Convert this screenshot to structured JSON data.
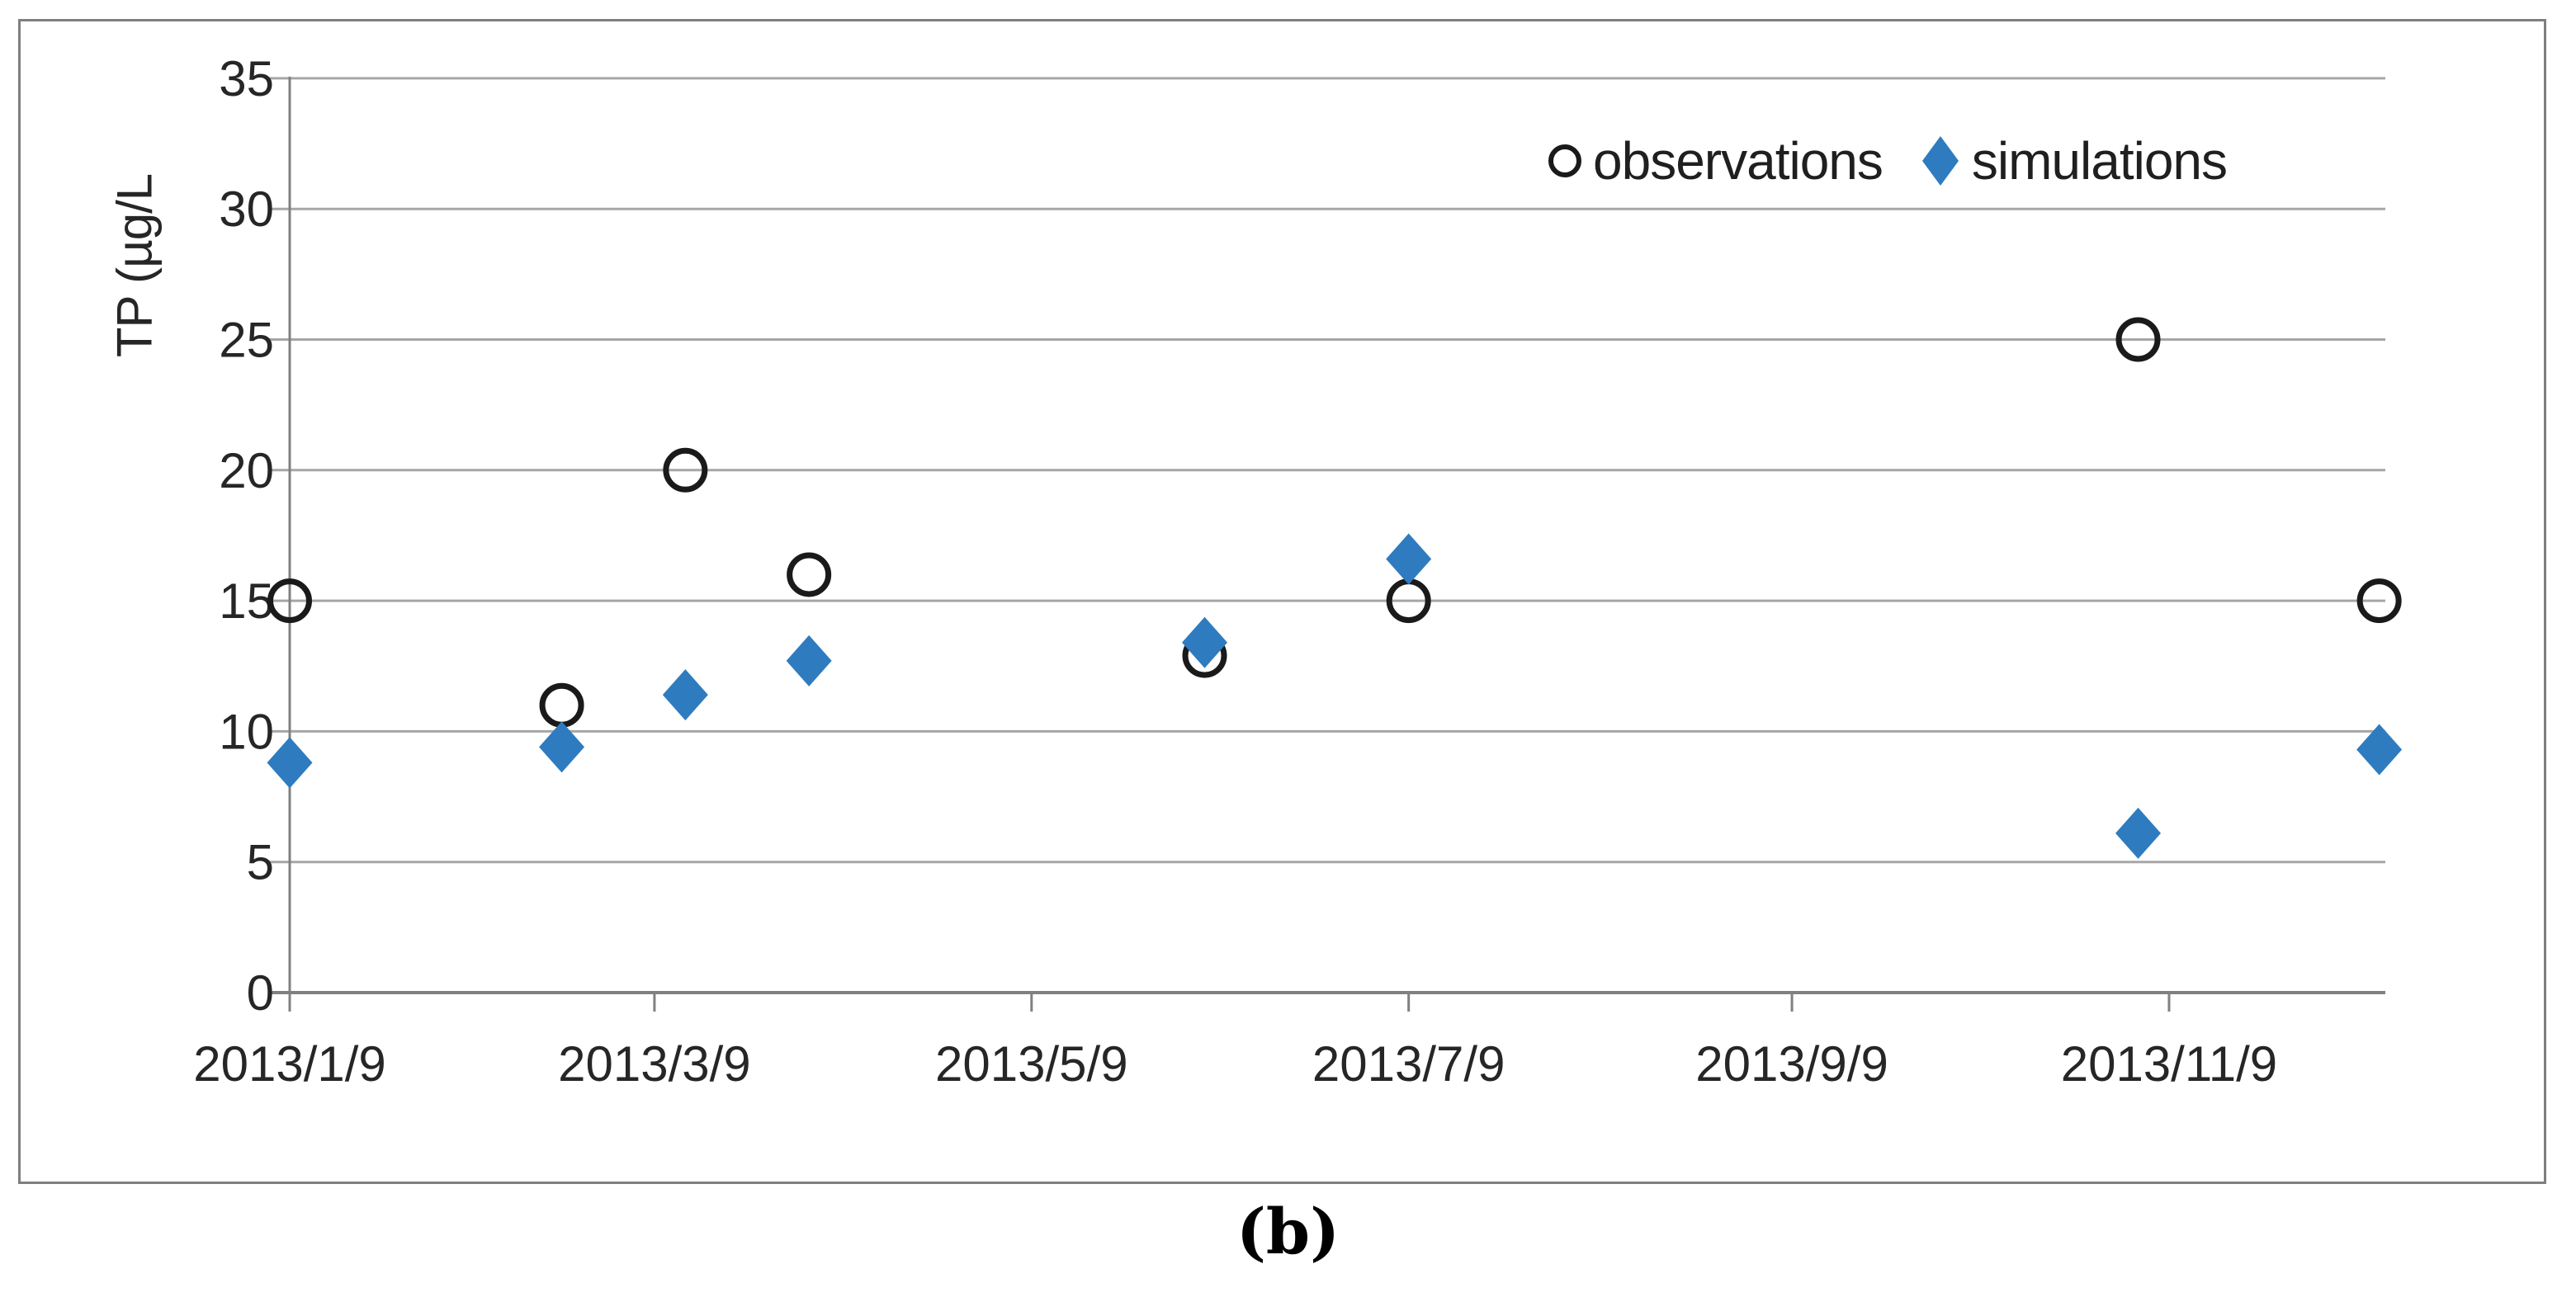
{
  "figure": {
    "caption": "(b)"
  },
  "legend": {
    "items": [
      {
        "label": "observations",
        "marker": "open-circle"
      },
      {
        "label": "simulations",
        "marker": "blue-diamond"
      }
    ]
  },
  "colors": {
    "simulation_blue": "#2e7cbf",
    "observation_black": "#1a1a1a",
    "gridline_gray": "#a6a6a6",
    "axis_gray": "#808080",
    "border_gray": "#7f7f7f",
    "text_dark": "#262626"
  },
  "chart_data": {
    "type": "scatter",
    "title": "",
    "xlabel": "",
    "ylabel": "TP (µg/L",
    "caption": "(b)",
    "x_dates": [
      "2013/1/9",
      "2013/2/22",
      "2013/3/14",
      "2013/4/3",
      "2013/6/6",
      "2013/7/9",
      "2013/11/4",
      "2013/12/13"
    ],
    "series": [
      {
        "name": "observations",
        "marker": "circle",
        "color": "#1a1a1a",
        "values": [
          15,
          11,
          20,
          16,
          12.9,
          15,
          25,
          15
        ]
      },
      {
        "name": "simulations",
        "marker": "diamond",
        "color": "#2e7cbf",
        "values": [
          8.8,
          9.4,
          11.4,
          12.7,
          13.4,
          16.6,
          6.1,
          9.3
        ]
      }
    ],
    "x_tick_labels": [
      "2013/1/9",
      "2013/3/9",
      "2013/5/9",
      "2013/7/9",
      "2013/9/9",
      "2013/11/9"
    ],
    "y_ticks": [
      0,
      5,
      10,
      15,
      20,
      25,
      30,
      35
    ],
    "ylim": [
      0,
      35
    ],
    "xlim": [
      "2013/1/9",
      "2013/12/14"
    ],
    "grid": "horizontal-only",
    "legend_position": "inside-top-right"
  }
}
